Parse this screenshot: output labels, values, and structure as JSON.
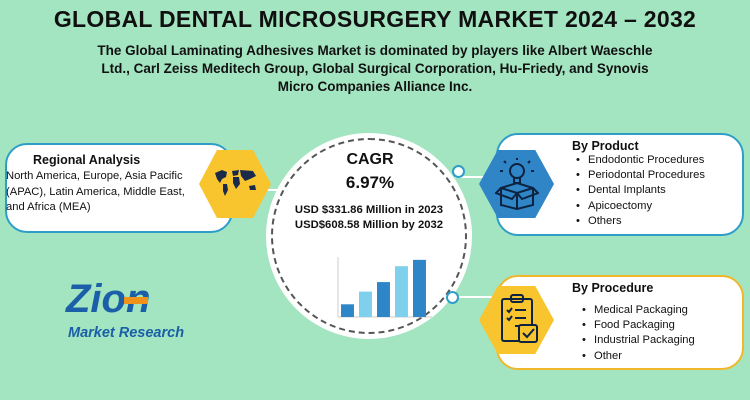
{
  "header": {
    "title": "GLOBAL DENTAL MICROSURGERY MARKET 2024 – 2032",
    "subtitle_lines": [
      "The Global Laminating Adhesives Market is dominated by players like Albert Waeschle",
      "Ltd., Carl Zeiss Meditech Group, Global Surgical Corporation, Hu-Friedy, and Synovis",
      "Micro Companies Alliance Inc."
    ]
  },
  "regional": {
    "title": "Regional Analysis",
    "text": "North America, Europe, Asia Pacific (APAC), Latin America, Middle East, and Africa (MEA)",
    "icon": "world-map-icon"
  },
  "center": {
    "cagr_label": "CAGR",
    "cagr_value": "6.97%",
    "value_2023": "USD $331.86 Million in 2023",
    "value_2032": "USD$608.58 Million by 2032"
  },
  "chart_data": {
    "type": "bar",
    "categories": [
      "",
      "",
      "",
      "",
      ""
    ],
    "values": [
      1.2,
      2.4,
      3.3,
      4.8,
      5.4
    ],
    "title": "",
    "xlabel": "",
    "ylabel": "",
    "colors": [
      "#2e86c8",
      "#7fd0ec"
    ]
  },
  "by_product": {
    "title": "By Product",
    "items": [
      "Endodontic Procedures",
      "Periodontal Procedures",
      "Dental Implants",
      "Apicoectomy",
      "Others"
    ],
    "icon": "lightbulb-box-icon"
  },
  "by_procedure": {
    "title": "By Procedure",
    "items": [
      "Medical Packaging",
      "Food Packaging",
      "Industrial Packaging",
      "Other"
    ],
    "icon": "checklist-clipboard-icon"
  },
  "logo": {
    "word1": "Zion",
    "word2": "Market Research",
    "brand_blue": "#1a5fa8",
    "brand_orange": "#f1931b"
  },
  "colors": {
    "background": "#a3e4c1",
    "accent_blue": "#2e9ec9",
    "accent_yellow": "#f8c52f"
  }
}
